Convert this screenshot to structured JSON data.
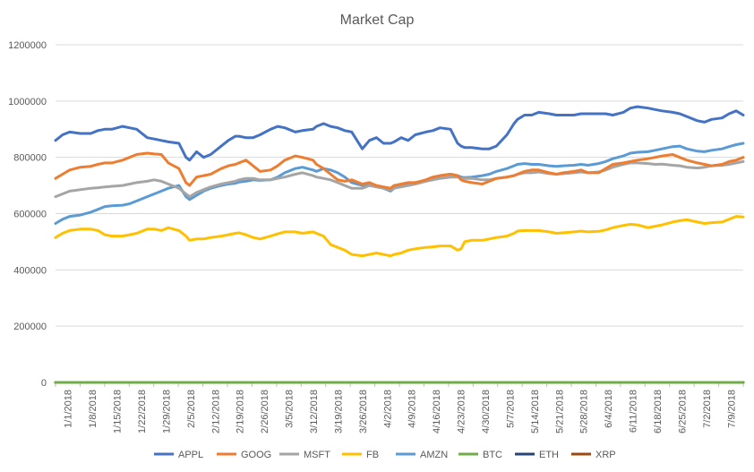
{
  "chart_data": {
    "type": "line",
    "title": "Market Cap",
    "xlabel": "",
    "ylabel": "",
    "ylim": [
      0,
      1200000
    ],
    "yticks": [
      0,
      200000,
      400000,
      600000,
      800000,
      1000000,
      1200000
    ],
    "ytick_labels": [
      "0",
      "200000",
      "400000",
      "600000",
      "800000",
      "1000000",
      "1200000"
    ],
    "xticks": [
      "1/1/2018",
      "1/8/2018",
      "1/15/2018",
      "1/22/2018",
      "1/29/2018",
      "2/5/2018",
      "2/12/2018",
      "2/19/2018",
      "2/26/2018",
      "3/5/2018",
      "3/12/2018",
      "3/19/2018",
      "3/26/2018",
      "4/2/2018",
      "4/9/2018",
      "4/16/2018",
      "4/23/2018",
      "4/30/2018",
      "5/7/2018",
      "5/14/2018",
      "5/21/2018",
      "5/28/2018",
      "6/4/2018",
      "6/11/2018",
      "6/18/2018",
      "6/25/2018",
      "7/2/2018",
      "7/9/2018"
    ],
    "x_days_range": [
      0,
      195
    ],
    "grid": true,
    "legend_position": "bottom",
    "series": [
      {
        "name": "APPL",
        "color": "#4472C4",
        "x": [
          0,
          2,
          4,
          7,
          10,
          12,
          14,
          16,
          19,
          21,
          23,
          26,
          28,
          30,
          32,
          35,
          37,
          38,
          40,
          42,
          44,
          47,
          49,
          51,
          52,
          54,
          56,
          58,
          61,
          63,
          65,
          68,
          70,
          73,
          74,
          76,
          78,
          80,
          82,
          84,
          87,
          89,
          91,
          93,
          95,
          96,
          98,
          100,
          102,
          105,
          107,
          109,
          112,
          114,
          115,
          116,
          118,
          121,
          123,
          125,
          128,
          130,
          131,
          133,
          135,
          137,
          140,
          142,
          144,
          147,
          149,
          151,
          154,
          156,
          158,
          161,
          163,
          165,
          168,
          170,
          172,
          175,
          177,
          179,
          182,
          184,
          186,
          189,
          191,
          193,
          195
        ],
        "y": [
          860000,
          880000,
          890000,
          885000,
          885000,
          895000,
          900000,
          900000,
          910000,
          905000,
          900000,
          870000,
          865000,
          860000,
          855000,
          850000,
          800000,
          790000,
          820000,
          800000,
          810000,
          840000,
          860000,
          875000,
          875000,
          870000,
          870000,
          880000,
          900000,
          910000,
          905000,
          890000,
          895000,
          900000,
          910000,
          920000,
          910000,
          905000,
          895000,
          890000,
          830000,
          860000,
          870000,
          850000,
          850000,
          855000,
          870000,
          860000,
          880000,
          890000,
          895000,
          905000,
          900000,
          850000,
          840000,
          835000,
          835000,
          830000,
          830000,
          840000,
          880000,
          920000,
          935000,
          950000,
          950000,
          960000,
          955000,
          950000,
          950000,
          950000,
          955000,
          955000,
          955000,
          955000,
          950000,
          960000,
          975000,
          980000,
          975000,
          970000,
          965000,
          960000,
          955000,
          945000,
          930000,
          925000,
          935000,
          940000,
          955000,
          965000,
          950000
        ]
      },
      {
        "name": "GOOG",
        "color": "#ED7D31",
        "x": [
          0,
          2,
          4,
          7,
          10,
          12,
          14,
          16,
          19,
          21,
          23,
          26,
          28,
          30,
          32,
          35,
          37,
          38,
          40,
          42,
          44,
          47,
          49,
          51,
          52,
          54,
          56,
          58,
          61,
          63,
          65,
          68,
          70,
          73,
          74,
          76,
          78,
          80,
          82,
          84,
          87,
          89,
          91,
          93,
          95,
          96,
          98,
          100,
          102,
          105,
          107,
          109,
          112,
          114,
          115,
          116,
          118,
          121,
          123,
          125,
          128,
          130,
          131,
          133,
          135,
          137,
          140,
          142,
          144,
          147,
          149,
          151,
          154,
          156,
          158,
          161,
          163,
          165,
          168,
          170,
          172,
          175,
          177,
          179,
          182,
          184,
          186,
          189,
          191,
          193,
          195
        ],
        "y": [
          725000,
          740000,
          755000,
          765000,
          768000,
          775000,
          780000,
          780000,
          790000,
          800000,
          810000,
          815000,
          812000,
          810000,
          780000,
          760000,
          710000,
          700000,
          730000,
          735000,
          740000,
          760000,
          770000,
          775000,
          780000,
          790000,
          770000,
          750000,
          755000,
          770000,
          790000,
          805000,
          800000,
          790000,
          775000,
          760000,
          740000,
          720000,
          715000,
          720000,
          705000,
          710000,
          700000,
          695000,
          690000,
          700000,
          705000,
          710000,
          710000,
          720000,
          730000,
          735000,
          740000,
          735000,
          720000,
          715000,
          710000,
          705000,
          715000,
          725000,
          730000,
          735000,
          740000,
          750000,
          755000,
          755000,
          745000,
          740000,
          745000,
          750000,
          755000,
          745000,
          745000,
          760000,
          775000,
          780000,
          785000,
          790000,
          795000,
          800000,
          805000,
          810000,
          800000,
          790000,
          780000,
          775000,
          770000,
          775000,
          785000,
          790000,
          800000
        ]
      },
      {
        "name": "MSFT",
        "color": "#A5A5A5",
        "x": [
          0,
          2,
          4,
          7,
          10,
          12,
          14,
          16,
          19,
          21,
          23,
          26,
          28,
          30,
          32,
          35,
          37,
          38,
          40,
          42,
          44,
          47,
          49,
          51,
          52,
          54,
          56,
          58,
          61,
          63,
          65,
          68,
          70,
          73,
          74,
          76,
          78,
          80,
          82,
          84,
          87,
          89,
          91,
          93,
          95,
          96,
          98,
          100,
          102,
          105,
          107,
          109,
          112,
          114,
          115,
          116,
          118,
          121,
          123,
          125,
          128,
          130,
          131,
          133,
          135,
          137,
          140,
          142,
          144,
          147,
          149,
          151,
          154,
          156,
          158,
          161,
          163,
          165,
          168,
          170,
          172,
          175,
          177,
          179,
          182,
          184,
          186,
          189,
          191,
          193,
          195
        ],
        "y": [
          660000,
          670000,
          680000,
          685000,
          690000,
          692000,
          695000,
          697000,
          700000,
          705000,
          710000,
          715000,
          720000,
          715000,
          705000,
          690000,
          670000,
          660000,
          675000,
          685000,
          695000,
          705000,
          710000,
          715000,
          720000,
          725000,
          725000,
          720000,
          720000,
          725000,
          730000,
          740000,
          745000,
          735000,
          730000,
          725000,
          720000,
          710000,
          700000,
          690000,
          690000,
          700000,
          695000,
          690000,
          685000,
          690000,
          695000,
          700000,
          705000,
          715000,
          720000,
          725000,
          730000,
          730000,
          725000,
          725000,
          725000,
          720000,
          720000,
          725000,
          730000,
          735000,
          740000,
          745000,
          745000,
          748000,
          742000,
          740000,
          742000,
          745000,
          748000,
          745000,
          748000,
          755000,
          765000,
          775000,
          780000,
          780000,
          778000,
          775000,
          776000,
          772000,
          770000,
          765000,
          762000,
          765000,
          770000,
          772000,
          775000,
          780000,
          785000
        ]
      },
      {
        "name": "FB",
        "color": "#FFC000",
        "x": [
          0,
          2,
          4,
          7,
          10,
          12,
          14,
          16,
          19,
          21,
          23,
          26,
          28,
          30,
          32,
          35,
          37,
          38,
          40,
          42,
          44,
          47,
          49,
          51,
          52,
          54,
          56,
          58,
          61,
          63,
          65,
          68,
          70,
          73,
          74,
          76,
          78,
          80,
          82,
          84,
          87,
          89,
          91,
          93,
          95,
          96,
          98,
          100,
          102,
          105,
          107,
          109,
          112,
          114,
          115,
          116,
          118,
          121,
          123,
          125,
          128,
          130,
          131,
          133,
          135,
          137,
          140,
          142,
          144,
          147,
          149,
          151,
          154,
          156,
          158,
          161,
          163,
          165,
          168,
          170,
          172,
          175,
          177,
          179,
          182,
          184,
          186,
          189,
          191,
          193,
          195
        ],
        "y": [
          515000,
          530000,
          540000,
          545000,
          545000,
          540000,
          525000,
          520000,
          520000,
          525000,
          530000,
          545000,
          545000,
          540000,
          550000,
          540000,
          520000,
          505000,
          510000,
          510000,
          515000,
          520000,
          525000,
          530000,
          532000,
          525000,
          515000,
          510000,
          520000,
          528000,
          535000,
          535000,
          530000,
          535000,
          530000,
          520000,
          490000,
          480000,
          470000,
          455000,
          450000,
          455000,
          460000,
          455000,
          450000,
          455000,
          460000,
          470000,
          475000,
          480000,
          482000,
          485000,
          485000,
          470000,
          475000,
          500000,
          505000,
          505000,
          510000,
          515000,
          520000,
          530000,
          538000,
          540000,
          540000,
          540000,
          535000,
          530000,
          532000,
          535000,
          538000,
          535000,
          537000,
          542000,
          550000,
          558000,
          562000,
          560000,
          550000,
          555000,
          560000,
          570000,
          575000,
          578000,
          570000,
          565000,
          568000,
          570000,
          580000,
          590000,
          588000
        ]
      },
      {
        "name": "AMZN",
        "color": "#5B9BD5",
        "x": [
          0,
          2,
          4,
          7,
          10,
          12,
          14,
          16,
          19,
          21,
          23,
          26,
          28,
          30,
          32,
          35,
          37,
          38,
          40,
          42,
          44,
          47,
          49,
          51,
          52,
          54,
          56,
          58,
          61,
          63,
          65,
          68,
          70,
          73,
          74,
          76,
          78,
          80,
          82,
          84,
          87,
          89,
          91,
          93,
          95,
          96,
          98,
          100,
          102,
          105,
          107,
          109,
          112,
          114,
          115,
          116,
          118,
          121,
          123,
          125,
          128,
          130,
          131,
          133,
          135,
          137,
          140,
          142,
          144,
          147,
          149,
          151,
          154,
          156,
          158,
          161,
          163,
          165,
          168,
          170,
          172,
          175,
          177,
          179,
          182,
          184,
          186,
          189,
          191,
          193,
          195
        ],
        "y": [
          565000,
          580000,
          590000,
          595000,
          605000,
          615000,
          625000,
          628000,
          630000,
          635000,
          645000,
          660000,
          670000,
          680000,
          690000,
          700000,
          660000,
          650000,
          665000,
          680000,
          690000,
          700000,
          705000,
          708000,
          712000,
          715000,
          720000,
          718000,
          720000,
          730000,
          745000,
          760000,
          765000,
          755000,
          750000,
          760000,
          755000,
          745000,
          730000,
          710000,
          700000,
          705000,
          695000,
          690000,
          680000,
          690000,
          700000,
          705000,
          710000,
          718000,
          725000,
          735000,
          740000,
          735000,
          730000,
          728000,
          730000,
          735000,
          740000,
          750000,
          760000,
          770000,
          775000,
          778000,
          775000,
          775000,
          770000,
          768000,
          770000,
          772000,
          775000,
          772000,
          778000,
          785000,
          795000,
          805000,
          815000,
          818000,
          820000,
          825000,
          830000,
          838000,
          840000,
          830000,
          822000,
          820000,
          825000,
          830000,
          838000,
          845000,
          850000
        ]
      },
      {
        "name": "BTC",
        "color": "#70AD47",
        "x": [
          0,
          195
        ],
        "y": [
          0,
          0
        ]
      },
      {
        "name": "ETH",
        "color": "#264478",
        "x": [
          0,
          195
        ],
        "y": [
          0,
          0
        ]
      },
      {
        "name": "XRP",
        "color": "#9E480E",
        "x": [
          0,
          195
        ],
        "y": [
          0,
          0
        ]
      }
    ]
  }
}
